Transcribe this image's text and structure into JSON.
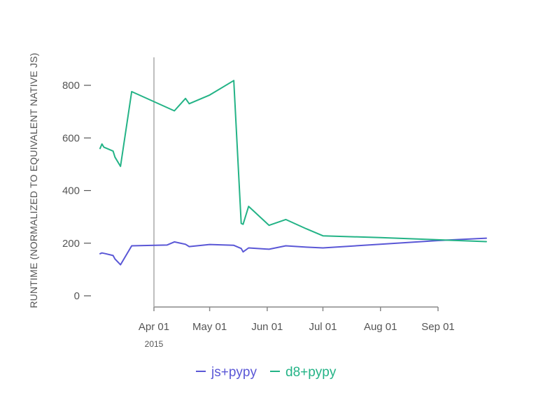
{
  "chart_data": {
    "type": "line",
    "title": "",
    "xlabel": "",
    "ylabel": "RUNTIME (NORMALIZED TO EQUIVALENT NATIVE JS)",
    "ylim": [
      0,
      900
    ],
    "yticks": [
      0,
      200,
      400,
      600,
      800
    ],
    "xlim": [
      "2015-03-01",
      "2015-09-30"
    ],
    "x_ticks": [
      {
        "date": "2015-04-01",
        "label": "Apr 01"
      },
      {
        "date": "2015-05-01",
        "label": "May 01"
      },
      {
        "date": "2015-06-01",
        "label": "Jun 01"
      },
      {
        "date": "2015-07-01",
        "label": "Jul 01"
      },
      {
        "date": "2015-08-01",
        "label": "Aug 01"
      },
      {
        "date": "2015-09-01",
        "label": "Sep 01"
      }
    ],
    "year_label": {
      "date": "2015-04-01",
      "label": "2015"
    },
    "reference_line": {
      "date": "2015-04-01"
    },
    "grid": false,
    "legend_position": "bottom-center",
    "series": [
      {
        "name": "js+pypy",
        "color": "#5a57d6",
        "x": [
          "2015-03-03",
          "2015-03-04",
          "2015-03-06",
          "2015-03-10",
          "2015-03-11",
          "2015-03-14",
          "2015-03-20",
          "2015-04-08",
          "2015-04-12",
          "2015-04-18",
          "2015-04-20",
          "2015-05-01",
          "2015-05-14",
          "2015-05-18",
          "2015-05-19",
          "2015-05-22",
          "2015-06-02",
          "2015-06-11",
          "2015-06-22",
          "2015-07-01",
          "2015-08-01",
          "2015-09-01",
          "2015-09-27"
        ],
        "values": [
          160,
          163,
          160,
          153,
          140,
          118,
          190,
          193,
          205,
          196,
          187,
          195,
          192,
          180,
          167,
          182,
          177,
          190,
          185,
          182,
          196,
          210,
          219
        ]
      },
      {
        "name": "d8+pypy",
        "color": "#23b386",
        "x": [
          "2015-03-03",
          "2015-03-04",
          "2015-03-05",
          "2015-03-10",
          "2015-03-11",
          "2015-03-14",
          "2015-03-20",
          "2015-04-12",
          "2015-04-18",
          "2015-04-20",
          "2015-05-01",
          "2015-05-14",
          "2015-05-18",
          "2015-05-19",
          "2015-05-22",
          "2015-06-02",
          "2015-06-11",
          "2015-06-22",
          "2015-07-01",
          "2015-08-01",
          "2015-09-01",
          "2015-09-27"
        ],
        "values": [
          560,
          577,
          565,
          550,
          527,
          492,
          776,
          703,
          750,
          730,
          763,
          818,
          275,
          272,
          340,
          268,
          290,
          255,
          228,
          221,
          213,
          206
        ]
      }
    ]
  }
}
